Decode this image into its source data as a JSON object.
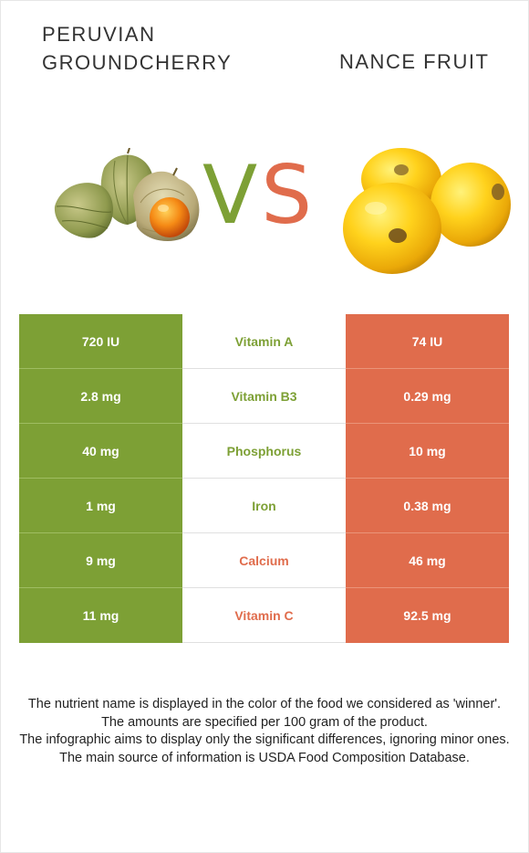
{
  "header": {
    "left_title": "PERUVIAN GROUNDCHERRY",
    "right_title": "NANCE FRUIT",
    "vs_v": "V",
    "vs_s": "S"
  },
  "colors": {
    "left_food": "#7da035",
    "right_food": "#e06c4c"
  },
  "images": {
    "left": "peruvian-groundcherry-image",
    "right": "nance-fruit-image"
  },
  "rows": [
    {
      "left": "720 IU",
      "nutrient": "Vitamin A",
      "right": "74 IU",
      "winner": "left"
    },
    {
      "left": "2.8 mg",
      "nutrient": "Vitamin B3",
      "right": "0.29 mg",
      "winner": "left"
    },
    {
      "left": "40 mg",
      "nutrient": "Phosphorus",
      "right": "10 mg",
      "winner": "left"
    },
    {
      "left": "1 mg",
      "nutrient": "Iron",
      "right": "0.38 mg",
      "winner": "left"
    },
    {
      "left": "9 mg",
      "nutrient": "Calcium",
      "right": "46 mg",
      "winner": "right"
    },
    {
      "left": "11 mg",
      "nutrient": "Vitamin C",
      "right": "92.5 mg",
      "winner": "right"
    }
  ],
  "notes": [
    "The nutrient name is displayed in the color of the food we considered as 'winner'.",
    "The amounts are specified per 100 gram of the product.",
    "The infographic aims to display only the significant differences, ignoring minor ones.",
    "The main source of information is USDA Food Composition Database."
  ]
}
